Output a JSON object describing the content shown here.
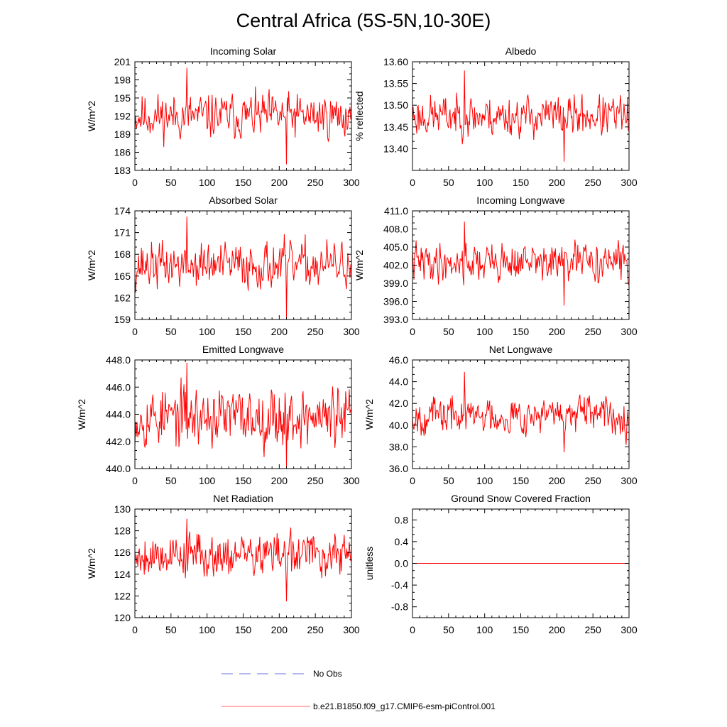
{
  "title": "Central Africa (5S-5N,10-30E)",
  "legend": {
    "obs_label": "No Obs",
    "obs_color": "#6a6fd8",
    "model_label": "b.e21.B1850.f09_g17.CMIP6-esm-piControl.001",
    "model_color": "#ff0000"
  },
  "chart_data": [
    {
      "type": "line",
      "title": "Incoming Solar",
      "ylabel": "W/m^2",
      "xlim": [
        0,
        300
      ],
      "xticks": [
        0,
        50,
        100,
        150,
        200,
        250,
        300
      ],
      "ylim": [
        183,
        201
      ],
      "yticks": [
        "183",
        "186",
        "189",
        "192",
        "195",
        "198",
        "201"
      ],
      "center": 192,
      "amplitude": 2.2,
      "min": 184.0,
      "max": 200.0,
      "seed": 11
    },
    {
      "type": "line",
      "title": "Albedo",
      "ylabel": "% reflected",
      "xlim": [
        0,
        300
      ],
      "xticks": [
        0,
        50,
        100,
        150,
        200,
        250,
        300
      ],
      "ylim": [
        13.35,
        13.6
      ],
      "yticks": [
        "13.40",
        "13.45",
        "13.50",
        "13.55",
        "13.60"
      ],
      "center": 13.475,
      "amplitude": 0.028,
      "min": 13.37,
      "max": 13.58,
      "seed": 23
    },
    {
      "type": "line",
      "title": "Absorbed Solar",
      "ylabel": "W/m^2",
      "xlim": [
        0,
        300
      ],
      "xticks": [
        0,
        50,
        100,
        150,
        200,
        250,
        300
      ],
      "ylim": [
        159,
        174
      ],
      "yticks": [
        "159",
        "162",
        "165",
        "168",
        "171",
        "174"
      ],
      "center": 166.5,
      "amplitude": 1.9,
      "min": 159.3,
      "max": 173.2,
      "seed": 37
    },
    {
      "type": "line",
      "title": "Incoming Longwave",
      "ylabel": "W/m^2",
      "xlim": [
        0,
        300
      ],
      "xticks": [
        0,
        50,
        100,
        150,
        200,
        250,
        300
      ],
      "ylim": [
        393,
        411
      ],
      "yticks": [
        "393.0",
        "396.0",
        "399.0",
        "402.0",
        "405.0",
        "408.0",
        "411.0"
      ],
      "center": 402.5,
      "amplitude": 1.9,
      "min": 395.3,
      "max": 409.2,
      "seed": 41
    },
    {
      "type": "line",
      "title": "Emitted Longwave",
      "ylabel": "W/m^2",
      "xlim": [
        0,
        300
      ],
      "xticks": [
        0,
        50,
        100,
        150,
        200,
        250,
        300
      ],
      "ylim": [
        440,
        448
      ],
      "yticks": [
        "440.0",
        "442.0",
        "444.0",
        "446.0",
        "448.0"
      ],
      "center": 443.8,
      "amplitude": 1.3,
      "min": 440.1,
      "max": 447.8,
      "seed": 53
    },
    {
      "type": "line",
      "title": "Net Longwave",
      "ylabel": "W/m^2",
      "xlim": [
        0,
        300
      ],
      "xticks": [
        0,
        50,
        100,
        150,
        200,
        250,
        300
      ],
      "ylim": [
        36,
        46
      ],
      "yticks": [
        "36.0",
        "38.0",
        "40.0",
        "42.0",
        "44.0",
        "46.0"
      ],
      "center": 40.9,
      "amplitude": 1.0,
      "min": 37.5,
      "max": 44.9,
      "seed": 67
    },
    {
      "type": "line",
      "title": "Net Radiation",
      "ylabel": "W/m^2",
      "xlim": [
        0,
        300
      ],
      "xticks": [
        0,
        50,
        100,
        150,
        200,
        250,
        300
      ],
      "ylim": [
        120,
        130
      ],
      "yticks": [
        "120",
        "122",
        "124",
        "126",
        "128",
        "130"
      ],
      "center": 125.8,
      "amplitude": 1.2,
      "min": 121.5,
      "max": 129.1,
      "seed": 79
    },
    {
      "type": "line",
      "title": "Ground Snow Covered Fraction",
      "ylabel": "unitless",
      "xlim": [
        0,
        300
      ],
      "xticks": [
        0,
        50,
        100,
        150,
        200,
        250,
        300
      ],
      "ylim": [
        -1.0,
        1.0
      ],
      "yticks": [
        "-0.8",
        "-0.4",
        "0.0",
        "0.4",
        "0.8"
      ],
      "ytick_values": [
        -0.8,
        -0.4,
        0.0,
        0.4,
        0.8
      ],
      "constant": 0.0
    }
  ]
}
